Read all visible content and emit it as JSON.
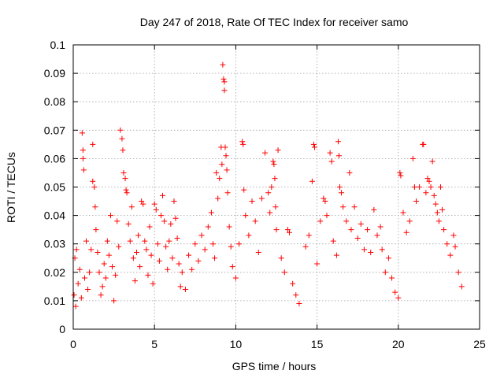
{
  "chart_data": {
    "type": "scatter",
    "title": "Day 247 of 2018, Rate Of TEC Index for receiver samo",
    "xlabel": "GPS time / hours",
    "ylabel": "ROTI / TECUs",
    "xlim": [
      0,
      25
    ],
    "ylim": [
      0,
      0.1
    ],
    "xticks": [
      0,
      5,
      10,
      15,
      20,
      25
    ],
    "xtick_labels": [
      "0",
      "5",
      "10",
      "15",
      "20",
      "25"
    ],
    "yticks": [
      0,
      0.01,
      0.02,
      0.03,
      0.04,
      0.05,
      0.06,
      0.07,
      0.08,
      0.09,
      0.1
    ],
    "ytick_labels": [
      "0",
      "0.01",
      "0.02",
      "0.03",
      "0.04",
      "0.05",
      "0.06",
      "0.07",
      "0.08",
      "0.09",
      "0.1"
    ],
    "grid": true,
    "marker": "plus",
    "marker_color": "#ff0000",
    "series": [
      {
        "points": [
          [
            0.05,
            0.012
          ],
          [
            0.1,
            0.025
          ],
          [
            0.15,
            0.008
          ],
          [
            0.2,
            0.028
          ],
          [
            0.3,
            0.016
          ],
          [
            0.4,
            0.021
          ],
          [
            0.5,
            0.011
          ],
          [
            0.55,
            0.069
          ],
          [
            0.6,
            0.063
          ],
          [
            0.6,
            0.06
          ],
          [
            0.65,
            0.056
          ],
          [
            0.7,
            0.018
          ],
          [
            0.8,
            0.031
          ],
          [
            0.9,
            0.014
          ],
          [
            1.0,
            0.02
          ],
          [
            1.1,
            0.028
          ],
          [
            1.2,
            0.065
          ],
          [
            1.2,
            0.052
          ],
          [
            1.3,
            0.05
          ],
          [
            1.35,
            0.043
          ],
          [
            1.4,
            0.035
          ],
          [
            1.5,
            0.027
          ],
          [
            1.6,
            0.02
          ],
          [
            1.7,
            0.012
          ],
          [
            1.8,
            0.015
          ],
          [
            1.9,
            0.023
          ],
          [
            2.0,
            0.018
          ],
          [
            2.1,
            0.031
          ],
          [
            2.2,
            0.026
          ],
          [
            2.3,
            0.04
          ],
          [
            2.4,
            0.022
          ],
          [
            2.5,
            0.01
          ],
          [
            2.6,
            0.019
          ],
          [
            2.7,
            0.038
          ],
          [
            2.8,
            0.029
          ],
          [
            2.9,
            0.07
          ],
          [
            3.0,
            0.067
          ],
          [
            3.05,
            0.063
          ],
          [
            3.1,
            0.055
          ],
          [
            3.2,
            0.053
          ],
          [
            3.25,
            0.049
          ],
          [
            3.3,
            0.048
          ],
          [
            3.4,
            0.037
          ],
          [
            3.5,
            0.031
          ],
          [
            3.6,
            0.043
          ],
          [
            3.7,
            0.025
          ],
          [
            3.8,
            0.017
          ],
          [
            3.9,
            0.027
          ],
          [
            4.0,
            0.033
          ],
          [
            4.1,
            0.022
          ],
          [
            4.2,
            0.045
          ],
          [
            4.3,
            0.044
          ],
          [
            4.4,
            0.031
          ],
          [
            4.5,
            0.028
          ],
          [
            4.6,
            0.019
          ],
          [
            4.7,
            0.036
          ],
          [
            4.8,
            0.026
          ],
          [
            4.9,
            0.016
          ],
          [
            5.0,
            0.044
          ],
          [
            5.1,
            0.042
          ],
          [
            5.2,
            0.03
          ],
          [
            5.3,
            0.024
          ],
          [
            5.4,
            0.04
          ],
          [
            5.5,
            0.047
          ],
          [
            5.6,
            0.038
          ],
          [
            5.7,
            0.029
          ],
          [
            5.8,
            0.021
          ],
          [
            5.9,
            0.031
          ],
          [
            6.0,
            0.037
          ],
          [
            6.1,
            0.025
          ],
          [
            6.2,
            0.045
          ],
          [
            6.3,
            0.039
          ],
          [
            6.4,
            0.032
          ],
          [
            6.5,
            0.023
          ],
          [
            6.6,
            0.015
          ],
          [
            6.7,
            0.02
          ],
          [
            6.9,
            0.014
          ],
          [
            7.1,
            0.026
          ],
          [
            7.3,
            0.021
          ],
          [
            7.5,
            0.03
          ],
          [
            7.7,
            0.024
          ],
          [
            7.9,
            0.033
          ],
          [
            8.1,
            0.028
          ],
          [
            8.3,
            0.036
          ],
          [
            8.5,
            0.041
          ],
          [
            8.6,
            0.03
          ],
          [
            8.7,
            0.025
          ],
          [
            8.8,
            0.055
          ],
          [
            8.9,
            0.046
          ],
          [
            9.0,
            0.053
          ],
          [
            9.1,
            0.064
          ],
          [
            9.15,
            0.058
          ],
          [
            9.2,
            0.093
          ],
          [
            9.25,
            0.088
          ],
          [
            9.3,
            0.087
          ],
          [
            9.3,
            0.084
          ],
          [
            9.35,
            0.064
          ],
          [
            9.4,
            0.061
          ],
          [
            9.45,
            0.056
          ],
          [
            9.5,
            0.048
          ],
          [
            9.6,
            0.036
          ],
          [
            9.7,
            0.029
          ],
          [
            9.8,
            0.022
          ],
          [
            10.0,
            0.018
          ],
          [
            10.2,
            0.03
          ],
          [
            10.4,
            0.066
          ],
          [
            10.45,
            0.065
          ],
          [
            10.5,
            0.049
          ],
          [
            10.6,
            0.04
          ],
          [
            10.8,
            0.033
          ],
          [
            11.0,
            0.045
          ],
          [
            11.2,
            0.038
          ],
          [
            11.4,
            0.027
          ],
          [
            11.6,
            0.046
          ],
          [
            11.8,
            0.062
          ],
          [
            12.0,
            0.048
          ],
          [
            12.1,
            0.041
          ],
          [
            12.2,
            0.05
          ],
          [
            12.3,
            0.059
          ],
          [
            12.35,
            0.058
          ],
          [
            12.4,
            0.053
          ],
          [
            12.45,
            0.043
          ],
          [
            12.5,
            0.035
          ],
          [
            12.6,
            0.063
          ],
          [
            12.8,
            0.025
          ],
          [
            13.0,
            0.02
          ],
          [
            13.2,
            0.035
          ],
          [
            13.3,
            0.034
          ],
          [
            13.5,
            0.016
          ],
          [
            13.7,
            0.012
          ],
          [
            13.9,
            0.009
          ],
          [
            14.3,
            0.029
          ],
          [
            14.5,
            0.033
          ],
          [
            14.7,
            0.052
          ],
          [
            14.8,
            0.065
          ],
          [
            14.85,
            0.064
          ],
          [
            15.0,
            0.023
          ],
          [
            15.2,
            0.038
          ],
          [
            15.4,
            0.046
          ],
          [
            15.5,
            0.045
          ],
          [
            15.6,
            0.04
          ],
          [
            15.8,
            0.062
          ],
          [
            15.9,
            0.059
          ],
          [
            16.0,
            0.031
          ],
          [
            16.2,
            0.026
          ],
          [
            16.3,
            0.066
          ],
          [
            16.35,
            0.061
          ],
          [
            16.4,
            0.05
          ],
          [
            16.5,
            0.048
          ],
          [
            16.6,
            0.043
          ],
          [
            16.8,
            0.038
          ],
          [
            17.0,
            0.055
          ],
          [
            17.1,
            0.035
          ],
          [
            17.3,
            0.043
          ],
          [
            17.5,
            0.032
          ],
          [
            17.7,
            0.037
          ],
          [
            17.9,
            0.028
          ],
          [
            18.1,
            0.035
          ],
          [
            18.3,
            0.027
          ],
          [
            18.5,
            0.042
          ],
          [
            18.7,
            0.033
          ],
          [
            18.9,
            0.036
          ],
          [
            19.0,
            0.028
          ],
          [
            19.2,
            0.02
          ],
          [
            19.4,
            0.025
          ],
          [
            19.6,
            0.018
          ],
          [
            19.8,
            0.013
          ],
          [
            20.0,
            0.011
          ],
          [
            20.1,
            0.055
          ],
          [
            20.15,
            0.054
          ],
          [
            20.3,
            0.041
          ],
          [
            20.5,
            0.034
          ],
          [
            20.7,
            0.038
          ],
          [
            20.9,
            0.06
          ],
          [
            21.0,
            0.05
          ],
          [
            21.1,
            0.045
          ],
          [
            21.3,
            0.05
          ],
          [
            21.5,
            0.065
          ],
          [
            21.55,
            0.065
          ],
          [
            21.7,
            0.048
          ],
          [
            21.8,
            0.053
          ],
          [
            21.9,
            0.052
          ],
          [
            22.0,
            0.05
          ],
          [
            22.1,
            0.059
          ],
          [
            22.2,
            0.047
          ],
          [
            22.3,
            0.044
          ],
          [
            22.4,
            0.041
          ],
          [
            22.5,
            0.038
          ],
          [
            22.6,
            0.05
          ],
          [
            22.7,
            0.042
          ],
          [
            22.8,
            0.035
          ],
          [
            23.0,
            0.03
          ],
          [
            23.2,
            0.026
          ],
          [
            23.4,
            0.033
          ],
          [
            23.5,
            0.029
          ],
          [
            23.7,
            0.02
          ],
          [
            23.9,
            0.015
          ]
        ]
      }
    ]
  }
}
